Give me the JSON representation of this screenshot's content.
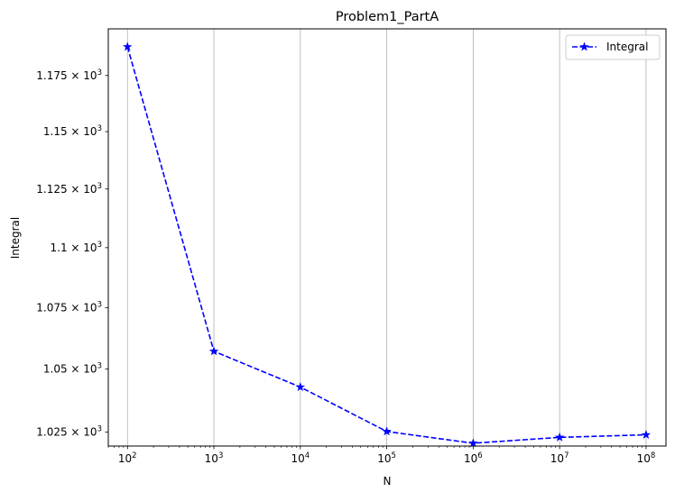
{
  "chart_data": {
    "type": "line",
    "title": "Problem1_PartA",
    "xlabel": "N",
    "ylabel": "Integral",
    "x_scale": "log",
    "y_scale": "log",
    "x": [
      100,
      1000,
      10000,
      100000,
      1000000,
      10000000,
      100000000
    ],
    "xlim": [
      60,
      170000000
    ],
    "ylim": [
      1.0195,
      1.1962
    ],
    "x_ticks": [
      {
        "value": 100,
        "base": "10",
        "exp": "2"
      },
      {
        "value": 1000,
        "base": "10",
        "exp": "3"
      },
      {
        "value": 10000,
        "base": "10",
        "exp": "4"
      },
      {
        "value": 100000,
        "base": "10",
        "exp": "5"
      },
      {
        "value": 1000000,
        "base": "10",
        "exp": "6"
      },
      {
        "value": 10000000,
        "base": "10",
        "exp": "7"
      },
      {
        "value": 100000000,
        "base": "10",
        "exp": "8"
      }
    ],
    "y_ticks": [
      {
        "value": 1.025,
        "mant": "1.025",
        "base": "10",
        "exp": "3"
      },
      {
        "value": 1.05,
        "mant": "1.05",
        "base": "10",
        "exp": "3"
      },
      {
        "value": 1.075,
        "mant": "1.075",
        "base": "10",
        "exp": "3"
      },
      {
        "value": 1.1,
        "mant": "1.1",
        "base": "10",
        "exp": "3"
      },
      {
        "value": 1.125,
        "mant": "1.125",
        "base": "10",
        "exp": "3"
      },
      {
        "value": 1.15,
        "mant": "1.15",
        "base": "10",
        "exp": "3"
      },
      {
        "value": 1.175,
        "mant": "1.175",
        "base": "10",
        "exp": "3"
      }
    ],
    "grid": "x-major",
    "legend_position": "top-right",
    "series": [
      {
        "name": "Integral",
        "color": "#0000ff",
        "linestyle": "dashed",
        "marker": "star",
        "values": [
          1.188,
          1.0572,
          1.0428,
          1.0252,
          1.0206,
          1.0229,
          1.0239
        ]
      }
    ]
  }
}
